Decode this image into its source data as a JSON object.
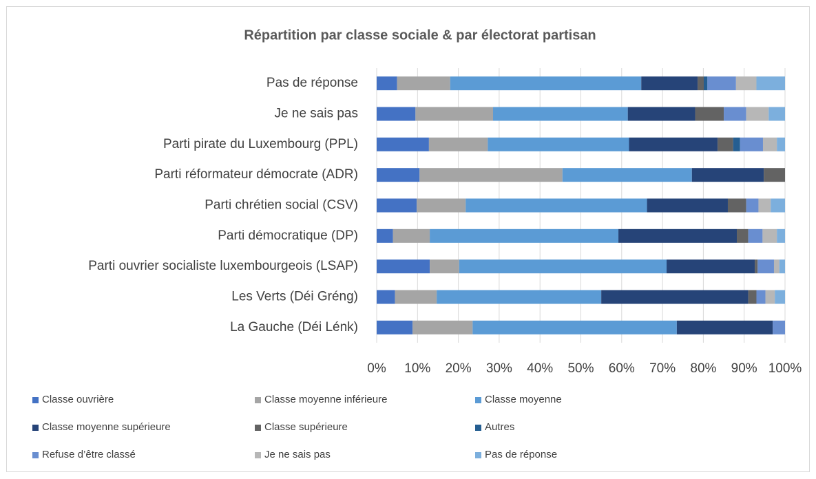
{
  "chart_data": {
    "type": "stacked_barh",
    "title": "Répartition par classe sociale & par électorat partisan",
    "categories": [
      "Pas de réponse",
      "Je ne sais pas",
      "Parti pirate du Luxembourg (PPL)",
      "Parti réformateur démocrate (ADR)",
      "Parti chrétien social (CSV)",
      "Parti démocratique (DP)",
      "Parti ouvrier socialiste luxembourgeois (LSAP)",
      "Les Verts (Déi Gréng)",
      "La Gauche (Déi Lénk)"
    ],
    "series": [
      {
        "name": "Classe ouvrière",
        "color": "#4472c4",
        "values": [
          5,
          9.5,
          12.8,
          10.5,
          9.8,
          4,
          13,
          4.5,
          8.8
        ]
      },
      {
        "name": "Classe moyenne inférieure",
        "color": "#a5a5a5",
        "values": [
          13,
          19,
          14.4,
          35,
          12,
          9,
          7.2,
          10.2,
          14.7
        ]
      },
      {
        "name": "Classe moyenne",
        "color": "#5b9bd5",
        "values": [
          46.8,
          33,
          34.6,
          31.7,
          44.4,
          46.2,
          50.8,
          40.3,
          50
        ]
      },
      {
        "name": "Classe moyenne supérieure",
        "color": "#264478",
        "values": [
          13.8,
          16.5,
          21.7,
          17.6,
          19.8,
          29,
          21.6,
          36,
          23.5
        ]
      },
      {
        "name": "Classe supérieure",
        "color": "#636363",
        "values": [
          1.5,
          7,
          3.8,
          5.2,
          4.5,
          2.8,
          0.7,
          2,
          0
        ]
      },
      {
        "name": "Autres",
        "color": "#255e91",
        "values": [
          0.9,
          0,
          1.7,
          0,
          0,
          0,
          0,
          0,
          0
        ]
      },
      {
        "name": "Refuse d’être classé",
        "color": "#698ed0",
        "values": [
          7,
          5.5,
          5.6,
          0,
          3,
          3.5,
          4,
          2.2,
          3
        ]
      },
      {
        "name": "Je ne sais pas",
        "color": "#b7b7b7",
        "values": [
          5,
          5.5,
          3.4,
          0,
          3,
          3.5,
          1.3,
          2.3,
          0
        ]
      },
      {
        "name": "Pas de réponse",
        "color": "#7cafdd",
        "values": [
          7,
          4,
          2,
          0,
          3.5,
          2,
          1.4,
          2.5,
          0
        ]
      }
    ],
    "xlim": [
      0,
      100
    ],
    "xticks": [
      {
        "value": 0,
        "label": "0%"
      },
      {
        "value": 10,
        "label": "10%"
      },
      {
        "value": 20,
        "label": "20%"
      },
      {
        "value": 30,
        "label": "30%"
      },
      {
        "value": 40,
        "label": "40%"
      },
      {
        "value": 50,
        "label": "50%"
      },
      {
        "value": 60,
        "label": "60%"
      },
      {
        "value": 70,
        "label": "70%"
      },
      {
        "value": 80,
        "label": "80%"
      },
      {
        "value": 90,
        "label": "90%"
      },
      {
        "value": 100,
        "label": "100%"
      }
    ],
    "grid": true,
    "legend": "bottom"
  }
}
